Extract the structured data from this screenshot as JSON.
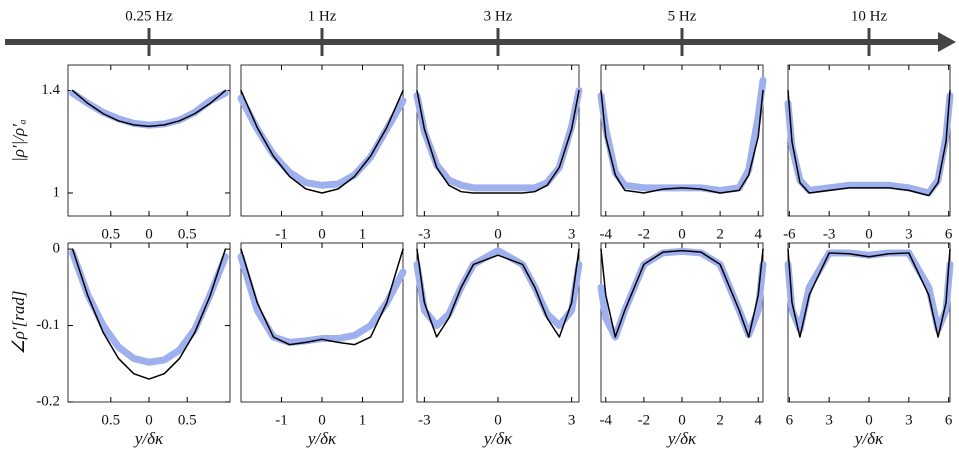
{
  "frequency_axis": {
    "labels": [
      "0.25 Hz",
      "1 Hz",
      "3 Hz",
      "5 Hz",
      "10 Hz"
    ]
  },
  "chart_data": [
    {
      "type": "line",
      "ylabel": "|ρ′|/ρ′ₐ",
      "x": [
        -1,
        -0.8,
        -0.6,
        -0.4,
        -0.2,
        0,
        0.2,
        0.4,
        0.6,
        0.8,
        1
      ],
      "xlim": [
        -1.06,
        1.06
      ],
      "ylim": [
        0.91,
        1.5
      ],
      "xticks": [
        {
          "value": -0.5,
          "label": "0.5"
        },
        0,
        0.5
      ],
      "yticks": [
        1,
        1.4
      ],
      "series": [
        {
          "color": "#9fb0ee",
          "line_width": 7,
          "values": [
            1.39,
            1.35,
            1.315,
            1.29,
            1.272,
            1.265,
            1.27,
            1.285,
            1.315,
            1.36,
            1.39
          ]
        },
        {
          "color": "#000000",
          "line_width": 1.5,
          "values": [
            1.4,
            1.35,
            1.31,
            1.282,
            1.266,
            1.26,
            1.266,
            1.282,
            1.31,
            1.35,
            1.4
          ]
        }
      ]
    },
    {
      "type": "line",
      "x": [
        -2,
        -1.6,
        -1.2,
        -0.8,
        -0.4,
        0,
        0.4,
        0.8,
        1.2,
        1.6,
        2
      ],
      "xlim": [
        -2,
        2
      ],
      "ylim": [
        0.91,
        1.5
      ],
      "xticks": [
        -1,
        0,
        1
      ],
      "series": [
        {
          "color": "#9fb0ee",
          "line_width": 7,
          "values": [
            1.37,
            1.25,
            1.15,
            1.08,
            1.04,
            1.03,
            1.035,
            1.07,
            1.14,
            1.25,
            1.36
          ]
        },
        {
          "color": "#000000",
          "line_width": 1.5,
          "values": [
            1.4,
            1.256,
            1.144,
            1.064,
            1.016,
            1.0,
            1.016,
            1.064,
            1.144,
            1.256,
            1.4
          ]
        }
      ]
    },
    {
      "type": "line",
      "x": [
        -3.3,
        -3,
        -2.5,
        -2,
        -1.5,
        -1,
        0,
        1,
        1.5,
        2,
        2.5,
        3,
        3.3
      ],
      "xlim": [
        -3.3,
        3.3
      ],
      "ylim": [
        0.91,
        1.5
      ],
      "xticks": [
        -3,
        0,
        3
      ],
      "series": [
        {
          "color": "#9fb0ee",
          "line_width": 7,
          "values": [
            1.38,
            1.24,
            1.11,
            1.05,
            1.03,
            1.02,
            1.02,
            1.02,
            1.02,
            1.04,
            1.1,
            1.26,
            1.4
          ]
        },
        {
          "color": "#000000",
          "line_width": 1.5,
          "values": [
            1.4,
            1.25,
            1.1,
            1.03,
            1.005,
            1.0,
            1.0,
            1.0,
            1.005,
            1.03,
            1.1,
            1.25,
            1.4
          ]
        }
      ]
    },
    {
      "type": "line",
      "x": [
        -4.25,
        -4,
        -3.5,
        -3,
        -2,
        -1,
        0,
        1,
        2,
        3,
        3.5,
        4,
        4.25
      ],
      "xlim": [
        -4.25,
        4.25
      ],
      "ylim": [
        0.91,
        1.5
      ],
      "xticks": [
        -4,
        -2,
        0,
        2,
        4
      ],
      "series": [
        {
          "color": "#9fb0ee",
          "line_width": 7,
          "values": [
            1.38,
            1.25,
            1.08,
            1.03,
            1.02,
            1.02,
            1.02,
            1.02,
            1.01,
            1.02,
            1.09,
            1.3,
            1.44
          ]
        },
        {
          "color": "#000000",
          "line_width": 1.5,
          "values": [
            1.4,
            1.22,
            1.07,
            1.01,
            1.0,
            1.015,
            1.02,
            1.015,
            1.0,
            1.01,
            1.07,
            1.22,
            1.4
          ]
        }
      ]
    },
    {
      "type": "line",
      "x": [
        -6.1,
        -5.8,
        -5.2,
        -4.5,
        -3,
        -1.5,
        0,
        1.5,
        3,
        4.5,
        5.2,
        5.8,
        6.1
      ],
      "xlim": [
        -6.1,
        6.1
      ],
      "ylim": [
        0.91,
        1.5
      ],
      "xticks": [
        -6,
        -3,
        0,
        3,
        6
      ],
      "series": [
        {
          "color": "#9fb0ee",
          "line_width": 7,
          "values": [
            1.35,
            1.18,
            1.05,
            1.01,
            1.02,
            1.03,
            1.03,
            1.03,
            1.02,
            1.0,
            1.05,
            1.22,
            1.38
          ]
        },
        {
          "color": "#000000",
          "line_width": 1.5,
          "values": [
            1.4,
            1.2,
            1.04,
            1.0,
            1.01,
            1.02,
            1.02,
            1.02,
            1.01,
            0.99,
            1.04,
            1.2,
            1.4
          ]
        }
      ]
    },
    {
      "type": "line",
      "ylabel": "∠ρ′[rad]",
      "xlabel": "y/δκ",
      "x": [
        -1,
        -0.8,
        -0.6,
        -0.4,
        -0.2,
        0,
        0.2,
        0.4,
        0.6,
        0.8,
        1
      ],
      "xlim": [
        -1.06,
        1.06
      ],
      "ylim": [
        -0.2,
        0.008
      ],
      "xticks": [
        {
          "value": -0.5,
          "label": "0.5"
        },
        0,
        0.5
      ],
      "yticks": [
        -0.2,
        -0.1,
        0
      ],
      "series": [
        {
          "color": "#9fb0ee",
          "line_width": 7,
          "values": [
            -0.005,
            -0.06,
            -0.1,
            -0.128,
            -0.143,
            -0.148,
            -0.145,
            -0.132,
            -0.105,
            -0.06,
            -0.01
          ]
        },
        {
          "color": "#000000",
          "line_width": 1.5,
          "values": [
            0,
            -0.061,
            -0.109,
            -0.143,
            -0.163,
            -0.17,
            -0.163,
            -0.143,
            -0.109,
            -0.061,
            0
          ]
        }
      ]
    },
    {
      "type": "line",
      "xlabel": "y/δκ",
      "x": [
        -2,
        -1.6,
        -1.2,
        -0.8,
        -0.4,
        0,
        0.4,
        0.8,
        1.2,
        1.6,
        2
      ],
      "xlim": [
        -2,
        2
      ],
      "ylim": [
        -0.2,
        0.008
      ],
      "xticks": [
        -1,
        0,
        1
      ],
      "series": [
        {
          "color": "#9fb0ee",
          "line_width": 7,
          "values": [
            -0.01,
            -0.08,
            -0.115,
            -0.122,
            -0.12,
            -0.117,
            -0.117,
            -0.113,
            -0.1,
            -0.07,
            -0.03
          ]
        },
        {
          "color": "#000000",
          "line_width": 1.5,
          "values": [
            0,
            -0.07,
            -0.115,
            -0.125,
            -0.122,
            -0.118,
            -0.122,
            -0.125,
            -0.115,
            -0.07,
            0
          ]
        }
      ]
    },
    {
      "type": "line",
      "xlabel": "y/δκ",
      "x": [
        -3.3,
        -3,
        -2.5,
        -2,
        -1.5,
        -1,
        0,
        1,
        1.5,
        2,
        2.5,
        3,
        3.3
      ],
      "xlim": [
        -3.3,
        3.3
      ],
      "ylim": [
        -0.2,
        0.008
      ],
      "xticks": [
        -3,
        0,
        3
      ],
      "series": [
        {
          "color": "#9fb0ee",
          "line_width": 7,
          "values": [
            -0.02,
            -0.08,
            -0.1,
            -0.085,
            -0.05,
            -0.02,
            -0.002,
            -0.02,
            -0.05,
            -0.085,
            -0.1,
            -0.08,
            -0.02
          ]
        },
        {
          "color": "#000000",
          "line_width": 1.5,
          "values": [
            0,
            -0.07,
            -0.115,
            -0.09,
            -0.05,
            -0.02,
            -0.008,
            -0.02,
            -0.05,
            -0.09,
            -0.115,
            -0.07,
            0
          ]
        }
      ]
    },
    {
      "type": "line",
      "xlabel": "y/δκ",
      "x": [
        -4.25,
        -4,
        -3.5,
        -3,
        -2,
        -1,
        0,
        1,
        2,
        3,
        3.5,
        4,
        4.25
      ],
      "xlim": [
        -4.25,
        4.25
      ],
      "ylim": [
        -0.2,
        0.008
      ],
      "xticks": [
        -4,
        -2,
        0,
        2,
        4
      ],
      "series": [
        {
          "color": "#9fb0ee",
          "line_width": 7,
          "values": [
            -0.05,
            -0.09,
            -0.115,
            -0.08,
            -0.02,
            -0.005,
            -0.003,
            -0.005,
            -0.02,
            -0.08,
            -0.112,
            -0.08,
            -0.02
          ]
        },
        {
          "color": "#000000",
          "line_width": 1.5,
          "values": [
            0,
            -0.06,
            -0.115,
            -0.08,
            -0.02,
            -0.004,
            -0.002,
            -0.004,
            -0.02,
            -0.08,
            -0.115,
            -0.06,
            0
          ]
        }
      ]
    },
    {
      "type": "line",
      "xlabel": "y/δκ",
      "x": [
        -6.1,
        -5.8,
        -5.2,
        -4.5,
        -3,
        -1.5,
        0,
        1.5,
        3,
        4.5,
        5.2,
        5.8,
        6.1
      ],
      "xlim": [
        -6.1,
        6.1
      ],
      "ylim": [
        -0.2,
        0.008
      ],
      "xticks": [
        {
          "value": -6,
          "label": "6"
        },
        {
          "value": -3,
          "label": "3"
        },
        0,
        3,
        6
      ],
      "series": [
        {
          "color": "#9fb0ee",
          "line_width": 7,
          "values": [
            -0.02,
            -0.08,
            -0.105,
            -0.05,
            -0.005,
            -0.005,
            -0.008,
            -0.005,
            -0.005,
            -0.05,
            -0.105,
            -0.08,
            -0.02
          ]
        },
        {
          "color": "#000000",
          "line_width": 1.5,
          "values": [
            0,
            -0.07,
            -0.115,
            -0.06,
            -0.005,
            -0.006,
            -0.01,
            -0.006,
            -0.005,
            -0.06,
            -0.115,
            -0.07,
            0
          ]
        }
      ]
    }
  ]
}
